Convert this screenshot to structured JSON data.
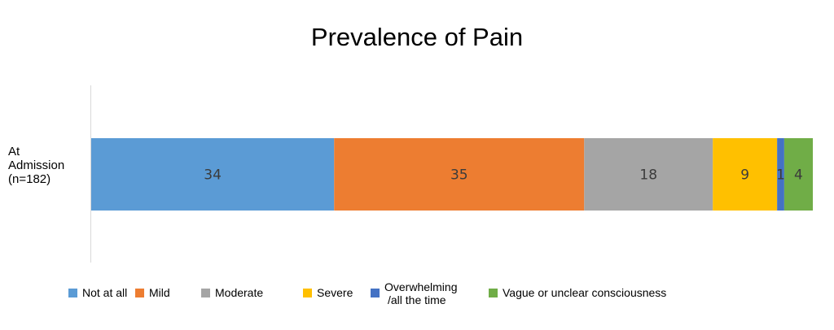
{
  "chart_data": {
    "type": "bar",
    "orientation": "horizontal",
    "stacked": true,
    "title": "Prevalence of Pain",
    "categories": [
      [
        "At",
        "Admission",
        "(n=182)"
      ]
    ],
    "series": [
      {
        "name": "Not at all",
        "values": [
          34
        ],
        "color": "#5B9BD5"
      },
      {
        "name": "Mild",
        "values": [
          35
        ],
        "color": "#ED7D31"
      },
      {
        "name": "Moderate",
        "values": [
          18
        ],
        "color": "#A5A5A5"
      },
      {
        "name": "Severe",
        "values": [
          9
        ],
        "color": "#FFC000"
      },
      {
        "name": "Overwhelming\n/all the time",
        "values": [
          1
        ],
        "color": "#4472C4"
      },
      {
        "name": "Vague or unclear consciousness",
        "values": [
          4
        ],
        "color": "#70AD47"
      }
    ],
    "data_labels": true,
    "legend_position": "bottom",
    "grid": false,
    "xaxis_visible": false
  }
}
